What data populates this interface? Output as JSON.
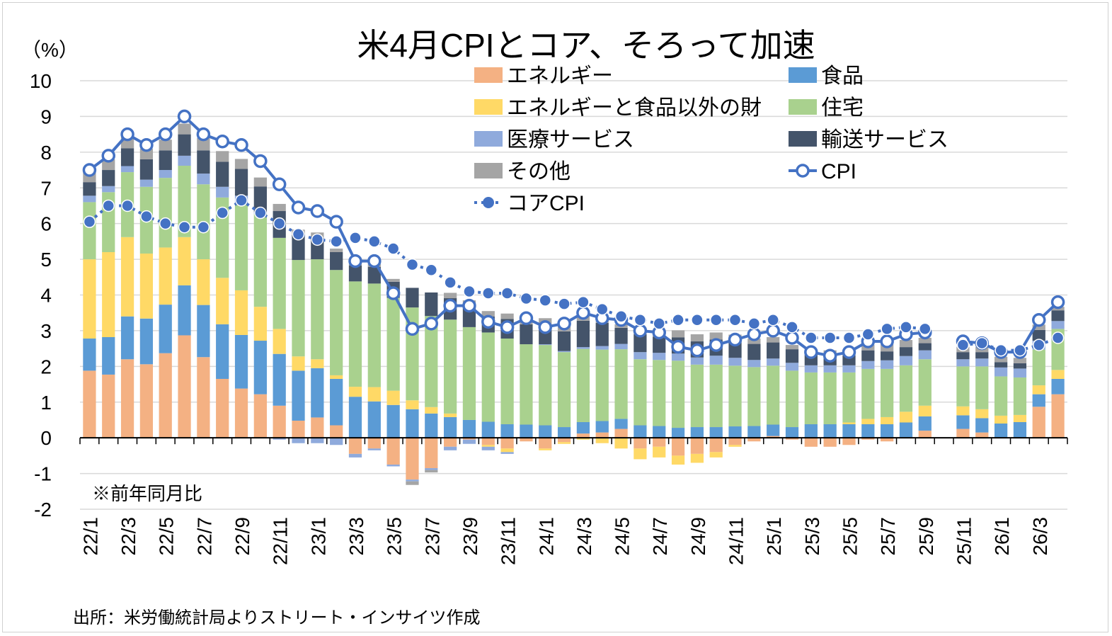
{
  "chart_data": {
    "type": "bar",
    "title": "米4月CPIとコア、そろって加速",
    "ylabel": "（%）",
    "note": "※前年同月比",
    "source": "出所：米労働統計局よりストリート・インサイツ作成",
    "ylim": [
      -2,
      10
    ],
    "yticks": [
      "10",
      "9",
      "8",
      "7",
      "6",
      "5",
      "4",
      "3",
      "2",
      "1",
      "0",
      "-1",
      "-2"
    ],
    "grid": true,
    "legend_position": "top",
    "colors": {
      "energy": "#F4B183",
      "food": "#5B9BD5",
      "core_goods": "#FFD966",
      "shelter": "#A9D18E",
      "medical": "#8FAADC",
      "transport": "#44546A",
      "other": "#A5A5A5",
      "line": "#4472C4"
    },
    "categories": [
      "22/1",
      "22/2",
      "22/3",
      "22/4",
      "22/5",
      "22/6",
      "22/7",
      "22/8",
      "22/9",
      "22/10",
      "22/11",
      "22/12",
      "23/1",
      "23/2",
      "23/3",
      "23/4",
      "23/5",
      "23/6",
      "23/7",
      "23/8",
      "23/9",
      "23/10",
      "23/11",
      "23/12",
      "24/1",
      "24/2",
      "24/3",
      "24/4",
      "24/5",
      "24/6",
      "24/7",
      "24/8",
      "24/9",
      "24/10",
      "24/11",
      "24/12",
      "25/1",
      "25/2",
      "25/3",
      "25/4",
      "25/5",
      "25/6",
      "25/7",
      "25/8",
      "25/9",
      "25/10",
      "25/11",
      "25/12",
      "26/1",
      "26/2",
      "26/3",
      "26/4"
    ],
    "xtick_labels": [
      "22/1",
      "22/3",
      "22/5",
      "22/7",
      "22/9",
      "22/11",
      "23/1",
      "23/3",
      "23/5",
      "23/7",
      "23/9",
      "23/11",
      "24/1",
      "24/3",
      "24/5",
      "24/7",
      "24/9",
      "24/11",
      "25/1",
      "25/3",
      "25/5",
      "25/7",
      "25/9",
      "25/11",
      "26/1",
      "26/3"
    ],
    "series": [
      {
        "name": "エネルギー",
        "key": "energy",
        "values": [
          1.88,
          1.77,
          2.2,
          2.06,
          2.37,
          2.87,
          2.26,
          1.65,
          1.38,
          1.22,
          0.9,
          0.48,
          0.57,
          0.35,
          -0.45,
          -0.3,
          -0.75,
          -1.17,
          -0.85,
          -0.25,
          -0.05,
          -0.2,
          -0.3,
          -0.1,
          -0.3,
          -0.12,
          0.12,
          0.15,
          0.25,
          -0.3,
          -0.25,
          -0.5,
          -0.45,
          -0.4,
          -0.2,
          -0.1,
          0.05,
          -0.05,
          -0.25,
          -0.25,
          -0.2,
          -0.05,
          -0.1,
          0.0,
          0.2,
          null,
          0.25,
          0.15,
          0.0,
          0.0,
          0.87,
          1.22
        ]
      },
      {
        "name": "食品",
        "key": "food",
        "values": [
          0.9,
          1.05,
          1.2,
          1.28,
          1.36,
          1.4,
          1.46,
          1.53,
          1.5,
          1.5,
          1.45,
          1.4,
          1.38,
          1.3,
          1.15,
          1.02,
          0.92,
          0.8,
          0.68,
          0.58,
          0.5,
          0.45,
          0.38,
          0.37,
          0.35,
          0.3,
          0.32,
          0.32,
          0.28,
          0.35,
          0.33,
          0.28,
          0.3,
          0.3,
          0.32,
          0.33,
          0.32,
          0.3,
          0.38,
          0.38,
          0.38,
          0.38,
          0.38,
          0.43,
          0.4,
          null,
          0.38,
          0.4,
          0.4,
          0.44,
          0.35,
          0.43
        ]
      },
      {
        "name": "エネルギーと食品以外の財",
        "key": "core_goods",
        "values": [
          2.22,
          2.38,
          2.22,
          1.82,
          1.6,
          1.35,
          1.28,
          1.3,
          1.25,
          0.95,
          0.7,
          0.4,
          0.25,
          0.1,
          0.28,
          0.4,
          0.4,
          0.25,
          0.18,
          0.1,
          0.0,
          -0.05,
          -0.1,
          0.0,
          -0.05,
          -0.05,
          -0.05,
          -0.15,
          -0.3,
          -0.3,
          -0.3,
          -0.25,
          -0.25,
          -0.15,
          -0.05,
          0.0,
          0.0,
          0.0,
          0.0,
          0.0,
          0.05,
          0.15,
          0.2,
          0.3,
          0.3,
          null,
          0.25,
          0.25,
          0.22,
          0.2,
          0.25,
          0.25
        ]
      },
      {
        "name": "住宅",
        "key": "shelter",
        "values": [
          1.6,
          1.68,
          1.82,
          1.87,
          1.95,
          2.0,
          2.1,
          2.25,
          2.45,
          2.6,
          2.55,
          2.7,
          2.8,
          2.95,
          2.95,
          2.9,
          2.6,
          2.6,
          2.55,
          2.63,
          2.6,
          2.5,
          2.4,
          2.25,
          2.25,
          2.1,
          2.05,
          2.0,
          1.95,
          1.85,
          1.85,
          1.88,
          1.75,
          1.75,
          1.7,
          1.65,
          1.65,
          1.58,
          1.45,
          1.45,
          1.4,
          1.4,
          1.35,
          1.3,
          1.3,
          null,
          1.12,
          1.2,
          1.1,
          1.05,
          1.0,
          1.15
        ]
      },
      {
        "name": "医療サービス",
        "key": "medical",
        "values": [
          0.18,
          0.17,
          0.17,
          0.2,
          0.22,
          0.28,
          0.3,
          0.3,
          0.2,
          0.05,
          -0.05,
          -0.15,
          -0.15,
          -0.2,
          -0.1,
          -0.05,
          -0.05,
          -0.05,
          -0.05,
          -0.1,
          -0.12,
          -0.1,
          -0.05,
          0.0,
          0.02,
          0.03,
          0.05,
          0.1,
          0.15,
          0.2,
          0.2,
          0.2,
          0.2,
          0.25,
          0.22,
          0.2,
          0.2,
          0.22,
          0.2,
          0.2,
          0.2,
          0.22,
          0.24,
          0.26,
          0.25,
          null,
          0.2,
          0.22,
          0.25,
          0.25,
          0.25,
          0.22
        ]
      },
      {
        "name": "輸送サービス",
        "key": "transport",
        "values": [
          0.38,
          0.45,
          0.5,
          0.57,
          0.55,
          0.6,
          0.65,
          0.7,
          0.75,
          0.72,
          0.75,
          0.7,
          0.6,
          0.5,
          0.45,
          0.47,
          0.45,
          0.55,
          0.66,
          0.6,
          0.55,
          0.45,
          0.55,
          0.56,
          0.53,
          0.55,
          0.74,
          0.65,
          0.45,
          0.5,
          0.45,
          0.45,
          0.45,
          0.45,
          0.45,
          0.45,
          0.45,
          0.38,
          0.3,
          0.3,
          0.28,
          0.3,
          0.25,
          0.25,
          0.2,
          null,
          0.2,
          0.18,
          0.15,
          0.15,
          0.3,
          0.3
        ]
      },
      {
        "name": "その他",
        "key": "other",
        "values": [
          0.3,
          0.3,
          0.31,
          0.3,
          0.3,
          0.3,
          0.35,
          0.3,
          0.28,
          0.25,
          0.2,
          0.15,
          0.15,
          0.1,
          0.05,
          0.08,
          0.08,
          -0.1,
          -0.07,
          0.15,
          0.2,
          0.15,
          0.15,
          0.2,
          0.2,
          0.15,
          0.15,
          0.1,
          0.1,
          0.18,
          0.15,
          0.2,
          0.2,
          0.2,
          0.2,
          0.15,
          0.15,
          0.12,
          0.12,
          0.12,
          0.14,
          0.16,
          0.2,
          0.2,
          0.15,
          null,
          0.15,
          0.15,
          0.15,
          0.15,
          0.15,
          0.1
        ]
      }
    ],
    "lines": [
      {
        "name": "CPI",
        "key": "cpi",
        "marker": "open",
        "values": [
          7.5,
          7.9,
          8.5,
          8.2,
          8.5,
          9.0,
          8.5,
          8.3,
          8.2,
          7.75,
          7.1,
          6.45,
          6.35,
          6.05,
          4.95,
          4.95,
          4.05,
          3.05,
          3.2,
          3.7,
          3.7,
          3.25,
          3.1,
          3.35,
          3.1,
          3.2,
          3.5,
          3.35,
          3.3,
          3.0,
          2.95,
          2.55,
          2.45,
          2.6,
          2.75,
          2.9,
          3.0,
          2.8,
          2.4,
          2.3,
          2.4,
          2.7,
          2.7,
          2.9,
          2.95,
          null,
          2.7,
          2.65,
          2.4,
          2.4,
          3.3,
          3.8
        ]
      },
      {
        "name": "コアCPI",
        "key": "core_cpi",
        "marker": "filled",
        "values": [
          6.05,
          6.5,
          6.5,
          6.2,
          6.0,
          5.9,
          5.9,
          6.3,
          6.65,
          6.3,
          6.0,
          5.7,
          5.55,
          5.5,
          5.6,
          5.5,
          5.3,
          4.85,
          4.7,
          4.35,
          4.1,
          4.05,
          4.05,
          3.9,
          3.85,
          3.75,
          3.8,
          3.6,
          3.4,
          3.3,
          3.2,
          3.3,
          3.3,
          3.3,
          3.3,
          3.2,
          3.3,
          3.1,
          2.8,
          2.8,
          2.8,
          2.9,
          3.05,
          3.1,
          3.05,
          null,
          2.6,
          2.65,
          2.45,
          2.45,
          2.6,
          2.8
        ]
      }
    ]
  }
}
